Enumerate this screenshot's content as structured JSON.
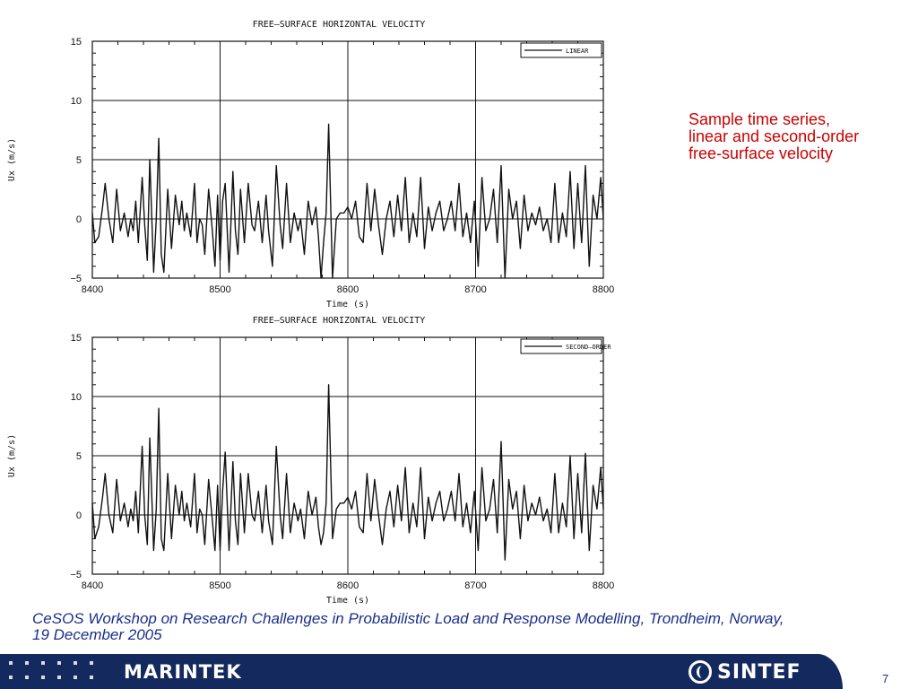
{
  "chart_data": [
    {
      "type": "line",
      "title": "FREE–SURFACE  HORIZONTAL  VELOCITY",
      "xlabel": "Time  (s)",
      "ylabel": "Ux (m/s)",
      "xlim": [
        8400,
        8800
      ],
      "ylim": [
        -5,
        15
      ],
      "xticks": [
        8400,
        8500,
        8600,
        8700,
        8800
      ],
      "yticks": [
        -5,
        0,
        5,
        10,
        15
      ],
      "grid": true,
      "legend_position": "top-right",
      "series": [
        {
          "name": "LINEAR",
          "x": [
            8400,
            8402,
            8405,
            8408,
            8410,
            8413,
            8416,
            8419,
            8422,
            8425,
            8428,
            8430,
            8432,
            8434,
            8436,
            8439,
            8441,
            8443,
            8445,
            8448,
            8450,
            8452,
            8454,
            8456,
            8459,
            8462,
            8465,
            8468,
            8470,
            8472,
            8474,
            8477,
            8480,
            8482,
            8484,
            8486,
            8488,
            8491,
            8494,
            8496,
            8498,
            8500,
            8502,
            8504,
            8507,
            8510,
            8512,
            8514,
            8516,
            8519,
            8522,
            8525,
            8527,
            8530,
            8533,
            8536,
            8538,
            8541,
            8544,
            8547,
            8549,
            8552,
            8555,
            8558,
            8561,
            8563,
            8566,
            8569,
            8572,
            8575,
            8577,
            8579,
            8581,
            8583,
            8585,
            8588,
            8591,
            8594,
            8597,
            8600,
            8603,
            8606,
            8609,
            8612,
            8615,
            8618,
            8621,
            8624,
            8627,
            8630,
            8633,
            8636,
            8639,
            8642,
            8645,
            8648,
            8651,
            8654,
            8657,
            8660,
            8663,
            8666,
            8669,
            8672,
            8675,
            8678,
            8681,
            8684,
            8687,
            8690,
            8693,
            8696,
            8699,
            8702,
            8705,
            8708,
            8711,
            8714,
            8717,
            8720,
            8723,
            8726,
            8729,
            8732,
            8735,
            8738,
            8741,
            8744,
            8747,
            8750,
            8753,
            8756,
            8759,
            8762,
            8765,
            8768,
            8771,
            8774,
            8777,
            8780,
            8783,
            8786,
            8789,
            8792,
            8795,
            8798,
            8800
          ],
          "y": [
            0.5,
            -2.0,
            -1.5,
            1.0,
            3.0,
            0.0,
            -2.0,
            2.5,
            -1.0,
            0.5,
            -1.5,
            0.0,
            -1.0,
            1.5,
            -2.0,
            3.5,
            -0.5,
            -3.5,
            5.0,
            -4.5,
            0.0,
            6.8,
            -3.0,
            -4.5,
            2.5,
            -2.5,
            2.0,
            -0.5,
            1.5,
            -1.0,
            0.5,
            -1.5,
            3.0,
            -2.0,
            0.0,
            -0.5,
            -3.0,
            2.5,
            -1.0,
            -4.0,
            2.0,
            -3.5,
            1.5,
            3.0,
            -4.5,
            4.0,
            -1.0,
            -3.0,
            2.5,
            -2.0,
            3.0,
            -0.5,
            -1.0,
            1.5,
            -2.0,
            2.0,
            -1.0,
            -4.0,
            4.5,
            -0.5,
            -2.5,
            3.0,
            -2.0,
            0.5,
            -1.0,
            0.0,
            -3.0,
            1.5,
            -0.5,
            1.0,
            -1.5,
            -5.5,
            -2.0,
            0.5,
            8.0,
            -5.0,
            0.0,
            0.5,
            0.5,
            1.0,
            0.0,
            1.5,
            -1.5,
            -2.0,
            3.0,
            -1.0,
            2.5,
            -0.5,
            -3.0,
            0.0,
            1.5,
            -1.5,
            2.0,
            -1.0,
            3.5,
            -2.0,
            0.5,
            -1.5,
            3.5,
            -2.5,
            1.0,
            -1.0,
            0.5,
            1.5,
            -1.0,
            0.0,
            1.5,
            -1.0,
            3.0,
            -1.5,
            0.5,
            -2.0,
            1.5,
            -4.0,
            3.5,
            -1.0,
            0.0,
            2.5,
            -2.0,
            4.5,
            -5.0,
            2.5,
            0.0,
            1.5,
            -2.5,
            2.0,
            -1.0,
            0.5,
            -0.5,
            1.0,
            -1.0,
            0.0,
            -2.0,
            3.0,
            -2.0,
            0.5,
            -1.5,
            4.0,
            -2.5,
            3.0,
            -2.0,
            4.5,
            -4.0,
            2.0,
            0.0,
            3.5,
            0.0
          ],
          "color": "#111111"
        }
      ]
    },
    {
      "type": "line",
      "title": "FREE–SURFACE  HORIZONTAL  VELOCITY",
      "xlabel": "Time  (s)",
      "ylabel": "Ux (m/s)",
      "xlim": [
        8400,
        8800
      ],
      "ylim": [
        -5,
        15
      ],
      "xticks": [
        8400,
        8500,
        8600,
        8700,
        8800
      ],
      "yticks": [
        -5,
        0,
        5,
        10,
        15
      ],
      "grid": true,
      "legend_position": "top-right",
      "series": [
        {
          "name": "SECOND–ORDER",
          "x": [
            8400,
            8402,
            8405,
            8408,
            8410,
            8413,
            8416,
            8419,
            8422,
            8425,
            8428,
            8430,
            8432,
            8434,
            8436,
            8439,
            8441,
            8443,
            8445,
            8448,
            8450,
            8452,
            8454,
            8456,
            8459,
            8462,
            8465,
            8468,
            8470,
            8472,
            8474,
            8477,
            8480,
            8482,
            8484,
            8486,
            8488,
            8491,
            8494,
            8496,
            8498,
            8500,
            8502,
            8504,
            8507,
            8510,
            8512,
            8514,
            8516,
            8519,
            8522,
            8525,
            8527,
            8530,
            8533,
            8536,
            8538,
            8541,
            8544,
            8547,
            8549,
            8552,
            8555,
            8558,
            8561,
            8563,
            8566,
            8569,
            8572,
            8575,
            8577,
            8579,
            8581,
            8583,
            8585,
            8588,
            8591,
            8594,
            8597,
            8600,
            8603,
            8606,
            8609,
            8612,
            8615,
            8618,
            8621,
            8624,
            8627,
            8630,
            8633,
            8636,
            8639,
            8642,
            8645,
            8648,
            8651,
            8654,
            8657,
            8660,
            8663,
            8666,
            8669,
            8672,
            8675,
            8678,
            8681,
            8684,
            8687,
            8690,
            8693,
            8696,
            8699,
            8702,
            8705,
            8708,
            8711,
            8714,
            8717,
            8720,
            8723,
            8726,
            8729,
            8732,
            8735,
            8738,
            8741,
            8744,
            8747,
            8750,
            8753,
            8756,
            8759,
            8762,
            8765,
            8768,
            8771,
            8774,
            8777,
            8780,
            8783,
            8786,
            8789,
            8792,
            8795,
            8798,
            8800
          ],
          "y": [
            1.0,
            -2.0,
            -1.0,
            1.5,
            3.5,
            0.0,
            -1.5,
            3.0,
            -0.5,
            1.0,
            -1.0,
            0.5,
            -0.5,
            2.0,
            -1.5,
            5.8,
            0.0,
            -2.5,
            6.5,
            -3.0,
            0.5,
            9.0,
            -2.0,
            -3.0,
            3.5,
            -2.0,
            2.5,
            0.0,
            2.0,
            -0.5,
            1.0,
            -1.0,
            3.5,
            -1.5,
            0.5,
            0.0,
            -2.5,
            3.0,
            -0.5,
            -3.0,
            2.5,
            -3.0,
            2.0,
            5.3,
            -3.0,
            4.5,
            -0.5,
            -2.5,
            3.5,
            -1.5,
            3.5,
            0.0,
            -0.5,
            2.0,
            -1.5,
            2.5,
            -0.5,
            -2.5,
            5.8,
            0.0,
            -2.0,
            3.5,
            -1.5,
            1.0,
            -0.5,
            0.5,
            -2.0,
            2.0,
            0.0,
            1.5,
            -1.0,
            -2.5,
            -1.5,
            1.0,
            11.0,
            -2.0,
            0.5,
            1.0,
            1.0,
            1.5,
            0.5,
            2.0,
            -1.0,
            -1.5,
            3.5,
            -0.5,
            3.0,
            0.0,
            -2.5,
            0.5,
            2.0,
            -1.0,
            2.5,
            -0.5,
            4.0,
            -1.5,
            1.0,
            -1.0,
            4.0,
            -2.0,
            1.5,
            -0.5,
            1.0,
            2.0,
            -0.5,
            0.5,
            2.0,
            -0.5,
            3.5,
            -1.0,
            1.0,
            -1.5,
            2.0,
            -3.0,
            4.0,
            -0.5,
            0.5,
            3.0,
            -1.5,
            6.2,
            -3.8,
            3.0,
            0.5,
            2.0,
            -2.0,
            2.5,
            -0.5,
            1.0,
            0.0,
            1.5,
            -0.5,
            0.5,
            -1.5,
            3.5,
            -1.5,
            1.0,
            -1.0,
            5.0,
            -2.0,
            3.5,
            -1.5,
            5.2,
            -3.0,
            2.5,
            0.5,
            4.0,
            0.5
          ],
          "color": "#111111"
        }
      ]
    }
  ],
  "caption": "Sample time series, linear and second-order free-surface velocity",
  "footnote": "CeSOS Workshop on Research Challenges in Probabilistic Load and Response Modelling, Trondheim, Norway, 19 December 2005",
  "footer": {
    "left_logo": "MARINTEK",
    "right_logo": "SINTEF",
    "page_number": "7"
  },
  "colors": {
    "caption": "#cc0000",
    "footnote": "#1a2e8a",
    "footer_band": "#142a5e"
  }
}
